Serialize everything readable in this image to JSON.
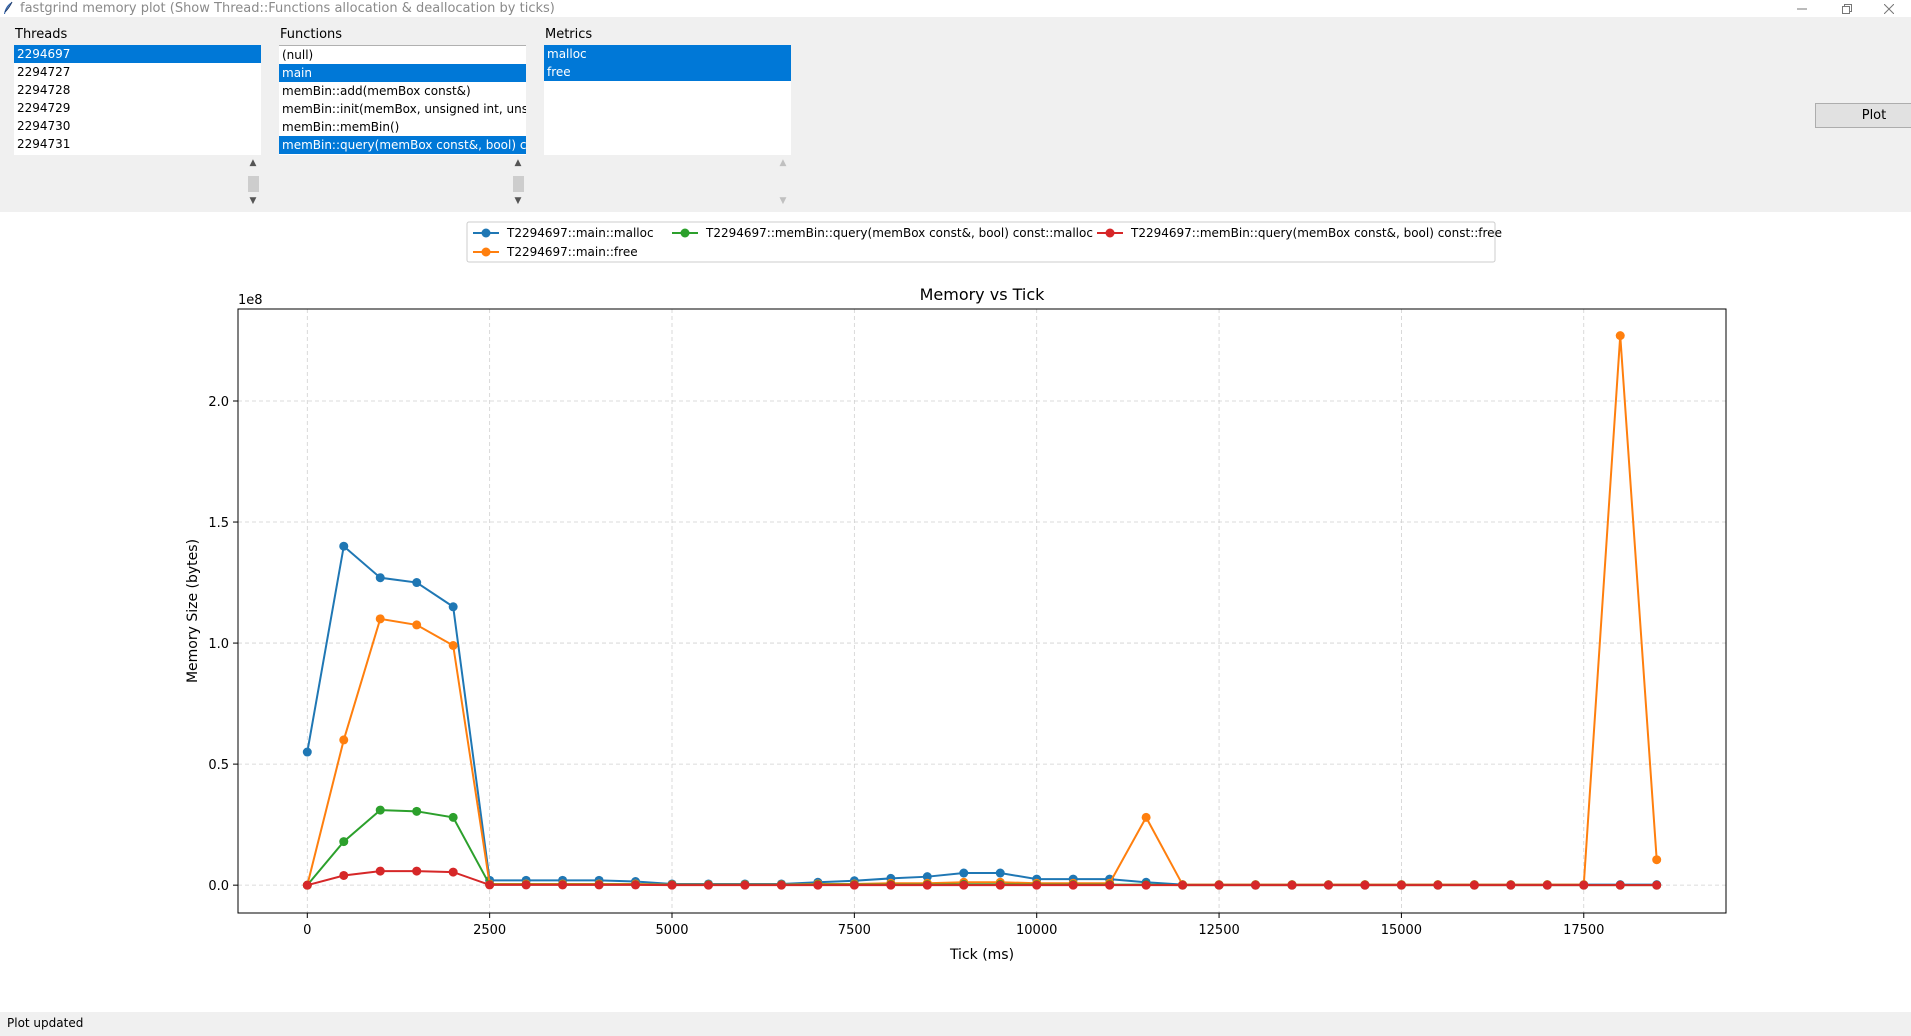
{
  "window": {
    "title": "fastgrind memory plot (Show Thread::Functions allocation & deallocation by ticks)"
  },
  "threads": {
    "label": "Threads",
    "items": [
      {
        "label": "2294697",
        "selected": true
      },
      {
        "label": "2294727",
        "selected": false
      },
      {
        "label": "2294728",
        "selected": false
      },
      {
        "label": "2294729",
        "selected": false
      },
      {
        "label": "2294730",
        "selected": false
      },
      {
        "label": "2294731",
        "selected": false
      }
    ]
  },
  "functions": {
    "label": "Functions",
    "items": [
      {
        "label": "(null)",
        "selected": false
      },
      {
        "label": "main",
        "selected": true
      },
      {
        "label": "memBin::add(memBox const&)",
        "selected": false
      },
      {
        "label": "memBin::init(memBox, unsigned int, unsigr",
        "selected": false
      },
      {
        "label": "memBin::memBin()",
        "selected": false
      },
      {
        "label": "memBin::query(memBox const&, bool) cor",
        "selected": true
      }
    ]
  },
  "metrics": {
    "label": "Metrics",
    "items": [
      {
        "label": "malloc",
        "selected": true
      },
      {
        "label": "free",
        "selected": true
      }
    ]
  },
  "plot_button": {
    "label": "Plot"
  },
  "status": {
    "text": "Plot updated"
  },
  "chart_data": {
    "type": "line",
    "title": "Memory vs Tick",
    "xlabel": "Tick (ms)",
    "ylabel": "Memory Size (bytes)",
    "y_offset_label": "1e8",
    "xlim": [
      -950,
      19450
    ],
    "ylim": [
      -0.115,
      2.38
    ],
    "xticks": [
      0,
      2500,
      5000,
      7500,
      10000,
      12500,
      15000,
      17500
    ],
    "yticks": [
      0.0,
      0.5,
      1.0,
      1.5,
      2.0
    ],
    "ytick_labels": [
      "0.0",
      "0.5",
      "1.0",
      "1.5",
      "2.0"
    ],
    "grid": true,
    "legend_position": "top-center, outside plot",
    "x": [
      0,
      500,
      1000,
      1500,
      2000,
      2500,
      3000,
      3500,
      4000,
      4500,
      5000,
      5500,
      6000,
      6500,
      7000,
      7500,
      8000,
      8500,
      9000,
      9500,
      10000,
      10500,
      11000,
      11500,
      12000,
      12500,
      13000,
      13500,
      14000,
      14500,
      15000,
      15500,
      16000,
      16500,
      17000,
      17500,
      18000,
      18500
    ],
    "series": [
      {
        "name": "T2294697::main::malloc",
        "color": "#1f77b4",
        "values": [
          0.55,
          1.4,
          1.27,
          1.25,
          1.15,
          0.02,
          0.02,
          0.02,
          0.02,
          0.015,
          0.005,
          0.005,
          0.005,
          0.005,
          0.012,
          0.018,
          0.028,
          0.035,
          0.05,
          0.05,
          0.025,
          0.025,
          0.025,
          0.012,
          0.002,
          0.002,
          0.002,
          0.002,
          0.002,
          0.002,
          0.002,
          0.002,
          0.002,
          0.002,
          0.002,
          0.002,
          0.002,
          0.002
        ]
      },
      {
        "name": "T2294697::main::free",
        "color": "#ff7f0e",
        "values": [
          0.0,
          0.6,
          1.1,
          1.075,
          0.99,
          0.005,
          0.005,
          0.005,
          0.005,
          0.005,
          0.002,
          0.002,
          0.002,
          0.002,
          0.005,
          0.005,
          0.008,
          0.008,
          0.012,
          0.012,
          0.008,
          0.008,
          0.008,
          0.28,
          0.002,
          0.002,
          0.002,
          0.002,
          0.002,
          0.002,
          0.002,
          0.002,
          0.002,
          0.002,
          0.002,
          0.002,
          2.27,
          0.105
        ]
      },
      {
        "name": "T2294697::memBin::query(memBox const&, bool) const::malloc",
        "color": "#2ca02c",
        "values": [
          0.0,
          0.18,
          0.31,
          0.305,
          0.28,
          0.002,
          0.002,
          0.002,
          0.002,
          0.002,
          0.001,
          0.001,
          0.001,
          0.001,
          0.002,
          0.002,
          0.002,
          0.002,
          0.003,
          0.003,
          0.002,
          0.002,
          0.002,
          0.002,
          0.0,
          0.0,
          0.0,
          0.0,
          0.0,
          0.0,
          0.0,
          0.0,
          0.0,
          0.0,
          0.0,
          0.0,
          0.0,
          0.0
        ]
      },
      {
        "name": "T2294697::memBin::query(memBox const&, bool) const::free",
        "color": "#d62728",
        "values": [
          0.0,
          0.04,
          0.058,
          0.058,
          0.054,
          0.001,
          0.001,
          0.001,
          0.001,
          0.001,
          0.0,
          0.0,
          0.0,
          0.0,
          0.0,
          0.0,
          0.0,
          0.0,
          0.0,
          0.0,
          0.0,
          0.0,
          0.0,
          0.0,
          0.0,
          0.0,
          0.0,
          0.0,
          0.0,
          0.0,
          0.0,
          0.0,
          0.0,
          0.0,
          0.0,
          0.0,
          0.0,
          0.0
        ]
      }
    ]
  }
}
